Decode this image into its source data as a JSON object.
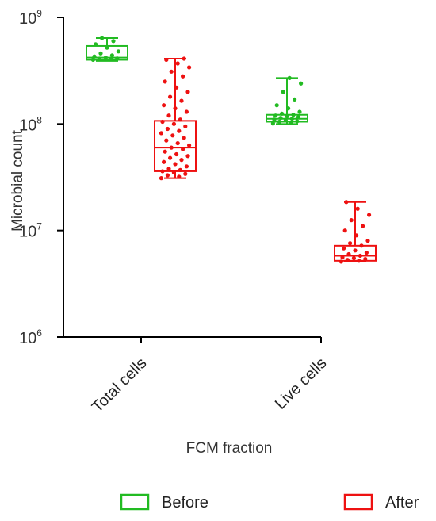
{
  "chart_data": {
    "type": "box",
    "title": "",
    "xlabel": "FCM fraction",
    "ylabel": "Microbial count",
    "yscale": "log",
    "ylim": [
      1000000,
      1000000000
    ],
    "y_ticks": [
      {
        "value": 1000000,
        "base": "10",
        "exp": "6"
      },
      {
        "value": 10000000,
        "base": "10",
        "exp": "7"
      },
      {
        "value": 100000000,
        "base": "10",
        "exp": "8"
      },
      {
        "value": 1000000000,
        "base": "10",
        "exp": "9"
      }
    ],
    "categories": [
      "Total cells",
      "Live cells"
    ],
    "series": [
      {
        "name": "Before",
        "color": "#22bb22",
        "boxes": [
          {
            "category": "Total cells",
            "min": 390000000,
            "q1": 400000000,
            "median": 420000000,
            "q3": 540000000,
            "max": 640000000,
            "points": [
              400000000,
              405000000,
              410000000,
              412000000,
              420000000,
              430000000,
              440000000,
              460000000,
              480000000,
              520000000,
              560000000,
              600000000,
              640000000
            ]
          },
          {
            "category": "Live cells",
            "min": 100000000,
            "q1": 105000000,
            "median": 112000000,
            "q3": 122000000,
            "max": 270000000,
            "points": [
              101000000,
              103000000,
              105000000,
              106000000,
              108000000,
              110000000,
              112000000,
              114000000,
              116000000,
              118000000,
              120000000,
              122000000,
              125000000,
              130000000,
              140000000,
              150000000,
              170000000,
              200000000,
              240000000,
              270000000
            ]
          }
        ]
      },
      {
        "name": "After",
        "color": "#ee1111",
        "boxes": [
          {
            "category": "Total cells",
            "min": 31000000,
            "q1": 36000000,
            "median": 60000000,
            "q3": 107000000,
            "max": 410000000,
            "points": [
              31000000,
              32000000,
              33000000,
              34000000,
              35000000,
              36000000,
              37000000,
              38000000,
              40000000,
              42000000,
              44000000,
              46000000,
              48000000,
              50000000,
              52000000,
              55000000,
              58000000,
              60000000,
              63000000,
              66000000,
              70000000,
              74000000,
              78000000,
              82000000,
              86000000,
              90000000,
              95000000,
              100000000,
              105000000,
              110000000,
              120000000,
              130000000,
              140000000,
              150000000,
              165000000,
              180000000,
              200000000,
              220000000,
              250000000,
              280000000,
              310000000,
              340000000,
              370000000,
              400000000,
              410000000
            ]
          },
          {
            "category": "Live cells",
            "min": 5100000,
            "q1": 5200000,
            "median": 5800000,
            "q3": 7200000,
            "max": 18500000,
            "points": [
              5100000,
              5200000,
              5300000,
              5400000,
              5500000,
              5600000,
              5800000,
              6000000,
              6200000,
              6500000,
              6800000,
              7200000,
              7600000,
              8000000,
              9000000,
              10000000,
              11000000,
              12500000,
              14000000,
              16000000,
              18500000
            ]
          }
        ]
      }
    ],
    "legend": {
      "placement": "bottom",
      "items": [
        "Before",
        "After"
      ]
    }
  }
}
